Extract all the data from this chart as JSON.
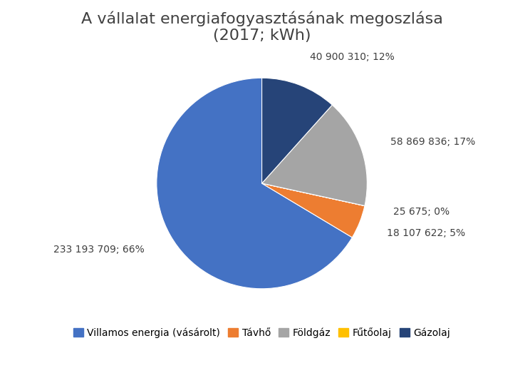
{
  "title": "A vállalat energiafogyasztásának megoszlása\n(2017; kWh)",
  "slices_cw": [
    {
      "label": "Gázolaj",
      "value": 40900310,
      "color": "#264478",
      "disp": "40 900 310; 12%"
    },
    {
      "label": "Földgáz",
      "value": 58869836,
      "color": "#A5A5A5",
      "disp": "58 869 836; 17%"
    },
    {
      "label": "Fűtőolaj",
      "value": 25675,
      "color": "#FFC000",
      "disp": "25 675; 0%"
    },
    {
      "label": "Távhő",
      "value": 18107622,
      "color": "#ED7D31",
      "disp": "18 107 622; 5%"
    },
    {
      "label": "Villamos energia (vásárolt)",
      "value": 233193709,
      "color": "#4472C4",
      "disp": "233 193 709; 66%"
    }
  ],
  "legend_order": [
    {
      "label": "Villamos energia (vásárolt)",
      "color": "#4472C4"
    },
    {
      "label": "Távhő",
      "color": "#ED7D31"
    },
    {
      "label": "Földgáz",
      "color": "#A5A5A5"
    },
    {
      "label": "Fűtőolaj",
      "color": "#FFC000"
    },
    {
      "label": "Gázolaj",
      "color": "#264478"
    }
  ],
  "background_color": "#FFFFFF",
  "title_fontsize": 16,
  "label_fontsize": 10,
  "legend_fontsize": 10,
  "startangle": 90
}
